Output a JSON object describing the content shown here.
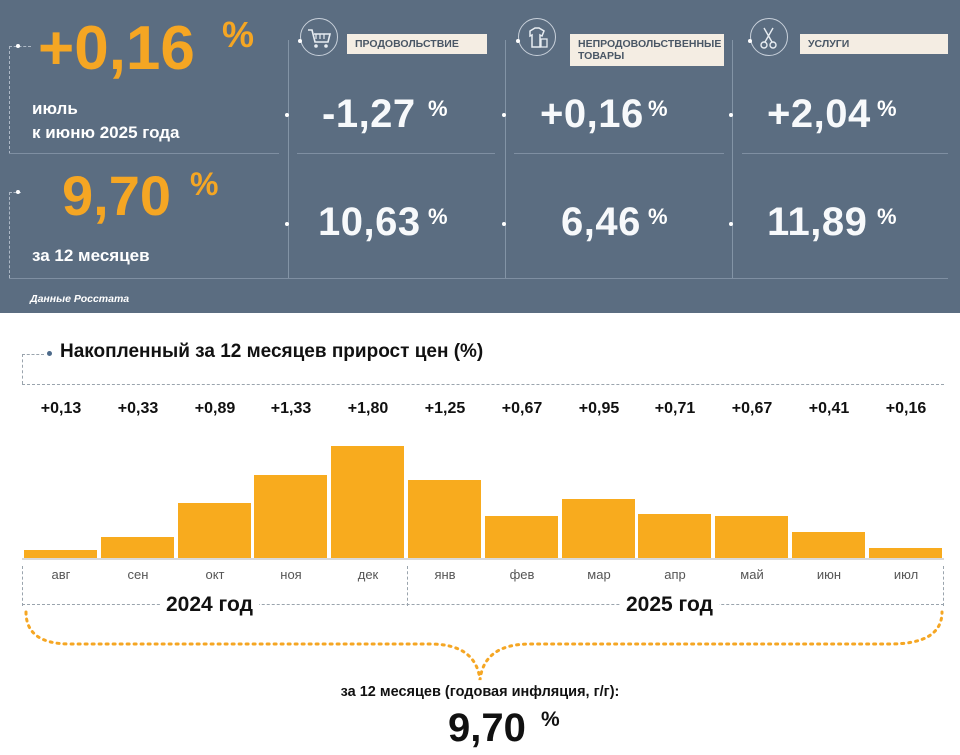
{
  "header": {
    "monthly": {
      "value": "+0,16",
      "unit": "%",
      "label_line1": "июль",
      "label_line2": "к июню 2025 года"
    },
    "annual": {
      "value": "9,70",
      "unit": "%",
      "label": "за 12 месяцев"
    },
    "categories": [
      {
        "name": "ПРОДОВОЛЬСТВИЕ",
        "icon": "shopping-cart-icon",
        "monthly": "-1,27",
        "annual": "10,63",
        "unit": "%"
      },
      {
        "name": "НЕПРОДОВОЛЬСТВЕННЫЕ ТОВАРЫ",
        "icon": "clothes-icon",
        "monthly": "+0,16",
        "annual": "6,46",
        "unit": "%"
      },
      {
        "name": "УСЛУГИ",
        "icon": "scissors-icon",
        "monthly": "+2,04",
        "annual": "11,89",
        "unit": "%"
      }
    ],
    "source": "Данные Росстата"
  },
  "colors": {
    "panel_bg": "#5b6d81",
    "accent_orange": "#f5a623",
    "bar_orange": "#f8ab1e",
    "label_bg": "#f4ede3"
  },
  "chart_data": {
    "type": "bar",
    "title": "Накопленный за 12 месяцев прирост цен (%)",
    "categories": [
      "авг",
      "сен",
      "окт",
      "ноя",
      "дек",
      "янв",
      "фев",
      "мар",
      "апр",
      "май",
      "июн",
      "июл"
    ],
    "values": [
      0.13,
      0.33,
      0.89,
      1.33,
      1.8,
      1.25,
      0.67,
      0.95,
      0.71,
      0.67,
      0.41,
      0.16
    ],
    "value_labels": [
      "+0,13",
      "+0,33",
      "+0,89",
      "+1,33",
      "+1,80",
      "+1,25",
      "+0,67",
      "+0,95",
      "+0,71",
      "+0,67",
      "+0,41",
      "+0,16"
    ],
    "years": [
      {
        "label": "2024 год",
        "months": [
          "авг",
          "сен",
          "окт",
          "ноя",
          "дек"
        ]
      },
      {
        "label": "2025 год",
        "months": [
          "янв",
          "фев",
          "мар",
          "апр",
          "май",
          "июн",
          "июл"
        ]
      }
    ],
    "ylim": [
      0,
      1.9
    ],
    "xlabel": "",
    "ylabel": "",
    "summary_label": "за 12 месяцев (годовая инфляция, г/г):",
    "summary_value": "9,70",
    "summary_unit": "%"
  }
}
